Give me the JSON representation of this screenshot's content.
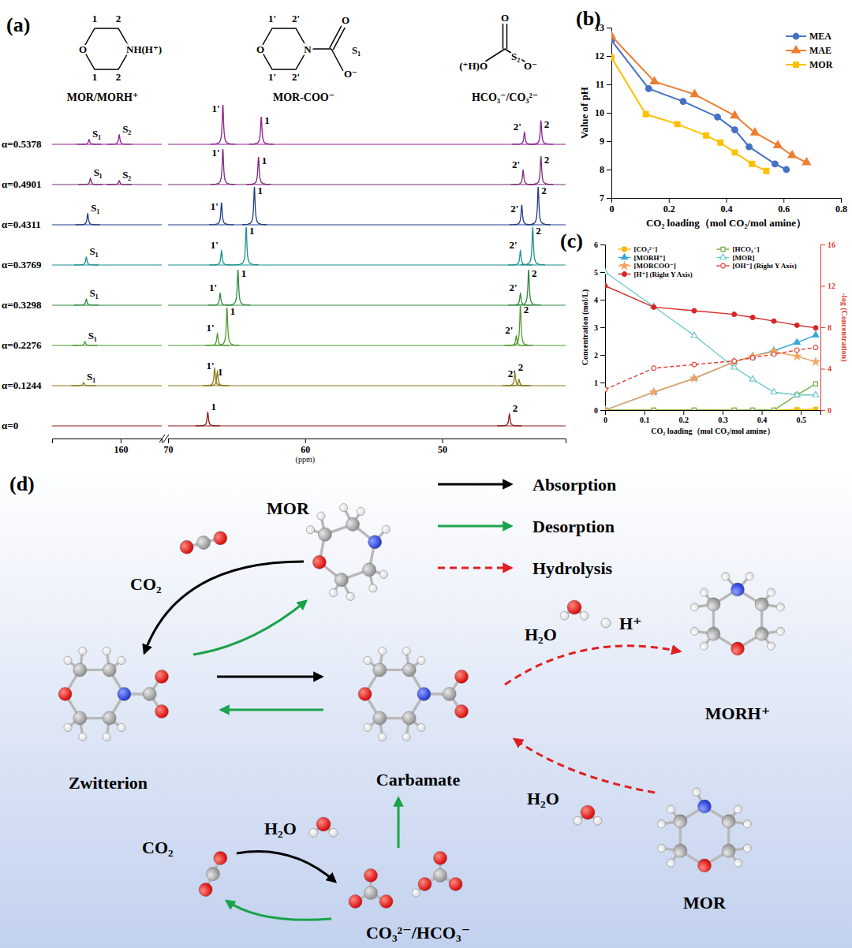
{
  "chart_data": [
    {
      "type": "spectrum",
      "title": "(a)",
      "structures": [
        {
          "caption": "MOR/MORH⁺",
          "labels": [
            "1",
            "2",
            "1",
            "2",
            "O",
            "NH(H⁺)"
          ]
        },
        {
          "caption": "MOR-COO⁻",
          "labels": [
            "1'",
            "2'",
            "1'",
            "2'",
            "O",
            "N",
            "O",
            "S₁",
            "O⁻"
          ]
        },
        {
          "caption": "HCO₃⁻/CO₃²⁻",
          "labels": [
            "O",
            "(⁺H)O",
            "S₂",
            "O⁻"
          ]
        }
      ],
      "x_label": "(ppm)",
      "xlim": [
        [
          165,
          157
        ],
        [
          70,
          41
        ]
      ],
      "xticks": [
        [
          160
        ],
        [
          70,
          60,
          50
        ]
      ],
      "ylim": [
        0,
        60
      ],
      "tick_labels": "x",
      "series": [
        {
          "name": "α=0.5378",
          "color": "#8e1f8e",
          "peaks": [
            {
              "label": "S₁",
              "x": 162.3,
              "value": 6
            },
            {
              "label": "S₂",
              "x": 160.1,
              "value": 12
            },
            {
              "label": "1'",
              "x": 66.0,
              "value": 50
            },
            {
              "label": "1",
              "x": 63.2,
              "value": 35
            },
            {
              "label": "2'",
              "x": 44.0,
              "value": 15
            },
            {
              "label": "2",
              "x": 42.8,
              "value": 30
            }
          ]
        },
        {
          "name": "α=0.4901",
          "color": "#7a2a7a",
          "peaks": [
            {
              "label": "S₁",
              "x": 162.2,
              "value": 8
            },
            {
              "label": "S₂",
              "x": 160.1,
              "value": 5
            },
            {
              "label": "1'",
              "x": 66.0,
              "value": 45
            },
            {
              "label": "1",
              "x": 63.4,
              "value": 35
            },
            {
              "label": "2'",
              "x": 44.1,
              "value": 18
            },
            {
              "label": "2",
              "x": 42.8,
              "value": 36
            }
          ]
        },
        {
          "name": "α=0.4311",
          "color": "#1f3c88",
          "peaks": [
            {
              "label": "S₁",
              "x": 162.4,
              "value": 14
            },
            {
              "label": "1'",
              "x": 66.1,
              "value": 28
            },
            {
              "label": "1",
              "x": 63.7,
              "value": 48
            },
            {
              "label": "2'",
              "x": 44.2,
              "value": 25
            },
            {
              "label": "2",
              "x": 43.0,
              "value": 48
            }
          ]
        },
        {
          "name": "α=0.3769",
          "color": "#1a9090",
          "peaks": [
            {
              "label": "S₁",
              "x": 162.5,
              "value": 10
            },
            {
              "label": "1'",
              "x": 66.1,
              "value": 18
            },
            {
              "label": "1",
              "x": 64.3,
              "value": 48
            },
            {
              "label": "2'",
              "x": 44.3,
              "value": 18
            },
            {
              "label": "2",
              "x": 43.4,
              "value": 48
            }
          ]
        },
        {
          "name": "α=0.3298",
          "color": "#2e8b3e",
          "peaks": [
            {
              "label": "S₁",
              "x": 162.5,
              "value": 8
            },
            {
              "label": "1'",
              "x": 66.2,
              "value": 15
            },
            {
              "label": "1",
              "x": 64.9,
              "value": 45
            },
            {
              "label": "2'",
              "x": 44.3,
              "value": 15
            },
            {
              "label": "2",
              "x": 43.7,
              "value": 45
            }
          ]
        },
        {
          "name": "α=0.2276",
          "color": "#4f9a2f",
          "peaks": [
            {
              "label": "S₁",
              "x": 162.6,
              "value": 5
            },
            {
              "label": "1'",
              "x": 66.4,
              "value": 15
            },
            {
              "label": "1",
              "x": 65.7,
              "value": 48
            },
            {
              "label": "2'",
              "x": 44.6,
              "value": 12
            },
            {
              "label": "2",
              "x": 44.3,
              "value": 50
            }
          ]
        },
        {
          "name": "α=0.1244",
          "color": "#8c7a1c",
          "peaks": [
            {
              "label": "S₁",
              "x": 162.7,
              "value": 4
            },
            {
              "label": "1",
              "x": 66.6,
              "value": 22
            },
            {
              "label": "1'",
              "x": 66.4,
              "value": 18
            },
            {
              "label": "2",
              "x": 44.7,
              "value": 16
            },
            {
              "label": "2'",
              "x": 44.4,
              "value": 8
            }
          ]
        },
        {
          "name": "α=0",
          "color": "#8b1a1a",
          "peaks": [
            {
              "label": "1",
              "x": 67.1,
              "value": 17
            },
            {
              "label": "2",
              "x": 45.1,
              "value": 15
            }
          ]
        }
      ]
    },
    {
      "type": "line",
      "title": "(b)",
      "x_label": "CO₂ loading（mol CO₂/mol amine）",
      "y_label": "Value of pH",
      "xlim": [
        0,
        0.8
      ],
      "xticks": [
        0,
        0.2,
        0.4,
        0.6,
        0.8
      ],
      "ylim": [
        7,
        13
      ],
      "yticks": [
        7,
        8,
        9,
        10,
        11,
        12,
        13
      ],
      "legend": "upper right",
      "series": [
        {
          "name": "MEA",
          "color": "#4472c4",
          "marker": "circle",
          "line_style": "solid",
          "x": [
            0,
            0.13,
            0.25,
            0.37,
            0.43,
            0.48,
            0.57,
            0.61
          ],
          "values": [
            12.55,
            10.85,
            10.4,
            9.85,
            9.4,
            8.8,
            8.2,
            8.0
          ]
        },
        {
          "name": "MAE",
          "color": "#ed7d31",
          "marker": "triangle",
          "line_style": "solid",
          "x": [
            0,
            0.15,
            0.29,
            0.43,
            0.5,
            0.58,
            0.63,
            0.68
          ],
          "values": [
            12.7,
            11.1,
            10.65,
            9.9,
            9.3,
            8.85,
            8.5,
            8.25
          ]
        },
        {
          "name": "MOR",
          "color": "#ffc000",
          "marker": "square",
          "line_style": "solid",
          "x": [
            0,
            0.12,
            0.23,
            0.33,
            0.38,
            0.43,
            0.49,
            0.54
          ],
          "values": [
            11.95,
            9.95,
            9.6,
            9.2,
            8.95,
            8.6,
            8.2,
            7.95
          ]
        }
      ]
    },
    {
      "type": "line",
      "title": "(c)",
      "x_label": "CO₂ loading（mol CO₂/mol amine）",
      "y_label": "Concentration (mol/L)",
      "y2_label": "-log (Concentration)",
      "x": [
        0,
        0.1244,
        0.2276,
        0.3298,
        0.3769,
        0.4311,
        0.4901,
        0.5378
      ],
      "xlim": [
        0,
        0.55
      ],
      "xticks": [
        0,
        0.1,
        0.2,
        0.3,
        0.4,
        0.5
      ],
      "ylim": [
        0,
        6
      ],
      "yticks": [
        0,
        1,
        2,
        3,
        4,
        5,
        6
      ],
      "y2lim": [
        0,
        16
      ],
      "y2ticks": [
        0,
        4,
        8,
        12,
        16
      ],
      "legend": "upper center",
      "series": [
        {
          "name": "[CO₃²⁻]",
          "color": "#f2b705",
          "marker": "square",
          "line_style": "solid",
          "values": [
            0,
            0,
            0,
            0,
            0,
            0,
            0.02,
            0.03
          ]
        },
        {
          "name": "[HCO₃⁻]",
          "color": "#70ad47",
          "marker": "square-open",
          "line_style": "solid",
          "values": [
            0,
            0,
            0,
            0,
            0,
            0,
            0.55,
            0.95
          ]
        },
        {
          "name": "[MORH⁺]",
          "color": "#33a8d8",
          "marker": "triangle",
          "line_style": "solid",
          "values": [
            0,
            0.65,
            1.15,
            1.75,
            1.95,
            2.15,
            2.45,
            2.72
          ]
        },
        {
          "name": "[MOR]",
          "color": "#6cc9c9",
          "marker": "triangle-open",
          "line_style": "solid",
          "values": [
            5.0,
            3.75,
            2.7,
            1.55,
            1.12,
            0.65,
            0.55,
            0.55
          ]
        },
        {
          "name": "[MORCOO⁻]",
          "color": "#f4a460",
          "marker": "star",
          "line_style": "solid",
          "values": [
            0,
            0.65,
            1.15,
            1.75,
            1.95,
            2.12,
            1.95,
            1.75
          ]
        },
        {
          "name": "[OH⁻] (Right Y Axis)",
          "color": "#e03c31",
          "marker": "circle-open",
          "line_style": "dashed",
          "axis": "y2",
          "values": [
            2.0,
            4.05,
            4.4,
            4.75,
            5.05,
            5.4,
            5.8,
            6.05
          ]
        },
        {
          "name": "[H⁺] (Right Y Axis)",
          "color": "#d62728",
          "marker": "circle",
          "line_style": "solid",
          "axis": "y2",
          "values": [
            12.0,
            9.95,
            9.6,
            9.25,
            8.95,
            8.6,
            8.2,
            7.95
          ]
        }
      ]
    }
  ],
  "diagram": {
    "title": "(d)",
    "arrow_legend": [
      {
        "label": "Absorption",
        "color": "#000000",
        "line_style": "solid"
      },
      {
        "label": "Desorption",
        "color": "#1aa34a",
        "line_style": "solid"
      },
      {
        "label": "Hydrolysis",
        "color": "#e02020",
        "line_style": "dashed"
      }
    ],
    "nodes": [
      {
        "label": "MOR"
      },
      {
        "label": "CO₂"
      },
      {
        "label": "Zwitterion"
      },
      {
        "label": "Carbamate"
      },
      {
        "label": "MORH⁺"
      },
      {
        "label": "MOR"
      },
      {
        "label": "CO₂"
      },
      {
        "label": "CO₃²⁻/HCO₃⁻"
      },
      {
        "label": "H₂O"
      },
      {
        "label": "H⁺"
      },
      {
        "label": "H₂O"
      },
      {
        "label": "H₂O"
      }
    ]
  }
}
